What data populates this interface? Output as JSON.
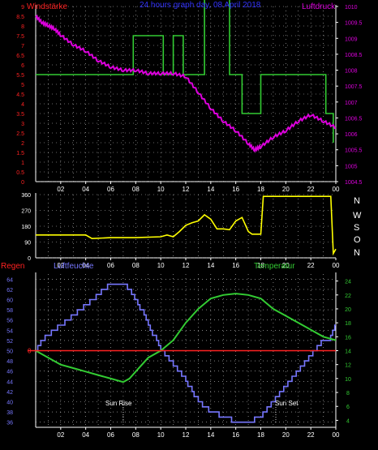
{
  "header": {
    "left_label": "Windstärke",
    "title": "24 hours graph day, 08 April 2018",
    "right_label": "Luftdruck"
  },
  "mid": {
    "axis_right_labels": [
      "N",
      "W",
      "S",
      "O",
      "N"
    ]
  },
  "bottom": {
    "left_label_1": "Regen",
    "left_label_2": "Luftfeuchte",
    "right_label": "Temperatur",
    "sunrise_label": "Sun Rise",
    "sunset_label": "Sun Set"
  },
  "colors": {
    "wind": "#33cc33",
    "pressure": "#dd00dd",
    "direction": "#ffff00",
    "humidity": "#7777ff",
    "temperature": "#33cc33",
    "rain": "#ff2222",
    "axis": "#ffffff",
    "grid": "#cccccc",
    "title": "#3333ff"
  },
  "chart_data": [
    {
      "type": "line",
      "title": "24 hours graph day, 08 April 2018",
      "x_ticks": [
        "02",
        "04",
        "06",
        "08",
        "10",
        "12",
        "14",
        "16",
        "18",
        "20",
        "22",
        "00"
      ],
      "y_left_label": "Windstärke",
      "y_left_ticks": [
        "0",
        "0.5",
        "1",
        "1.5",
        "2",
        "2.5",
        "3",
        "3.5",
        "4",
        "4.5",
        "5",
        "5.5",
        "6",
        "6.5",
        "7",
        "7.5",
        "8",
        "8.5",
        "9"
      ],
      "y_left_lim": [
        0,
        9
      ],
      "y_right_label": "Luftdruck",
      "y_right_ticks": [
        "1004.5",
        "1005",
        "1005.5",
        "1006",
        "1006.5",
        "1007",
        "1007.5",
        "1008",
        "1008.5",
        "1009",
        "1009.5",
        "1010"
      ],
      "y_right_lim": [
        1004.5,
        1010
      ],
      "series": [
        {
          "name": "Windstärke",
          "axis": "left",
          "step": true,
          "x": [
            0,
            7.8,
            7.8,
            10.2,
            10.2,
            11,
            11,
            11.8,
            11.8,
            13.5,
            13.5,
            15.5,
            15.5,
            16.5,
            16.5,
            18,
            18,
            20,
            20,
            23.2,
            23.2,
            23.8,
            23.8
          ],
          "y": [
            5.5,
            5.5,
            7.5,
            7.5,
            5.5,
            5.5,
            7.5,
            7.5,
            5.5,
            5.5,
            9.5,
            9.5,
            5.5,
            5.5,
            3.5,
            3.5,
            5.5,
            5.5,
            5.5,
            5.5,
            3.5,
            3.5,
            2
          ]
        },
        {
          "name": "Luftdruck",
          "axis": "right",
          "x": [
            0,
            0.5,
            1,
            1.5,
            2,
            3,
            4,
            5,
            6,
            7,
            8,
            9,
            10,
            11,
            12,
            13,
            14,
            15,
            16,
            17,
            17.5,
            18,
            19,
            20,
            21,
            22,
            23,
            24
          ],
          "y": [
            1009.7,
            1009.5,
            1009.4,
            1009.3,
            1009.1,
            1008.8,
            1008.6,
            1008.3,
            1008.1,
            1008.0,
            1008.0,
            1007.9,
            1007.9,
            1007.9,
            1007.8,
            1007.3,
            1006.8,
            1006.4,
            1006.1,
            1005.7,
            1005.5,
            1005.6,
            1005.9,
            1006.1,
            1006.4,
            1006.6,
            1006.4,
            1006.2
          ]
        }
      ]
    },
    {
      "type": "line",
      "x_ticks": [
        "02",
        "04",
        "06",
        "08",
        "10",
        "12",
        "14",
        "16",
        "18",
        "20",
        "22",
        "00"
      ],
      "y_left_ticks": [
        "0",
        "90",
        "180",
        "270",
        "360"
      ],
      "y_lim": [
        0,
        360
      ],
      "series": [
        {
          "name": "Windrichtung",
          "x": [
            0,
            2,
            4,
            4.5,
            6,
            8,
            10,
            10.5,
            11,
            11.5,
            12,
            12.5,
            13,
            13.5,
            14,
            14.5,
            15,
            15.5,
            16,
            16.5,
            17,
            17.3,
            17.8,
            18,
            18.2,
            20,
            22,
            23.6,
            23.8,
            24
          ],
          "y": [
            130,
            130,
            130,
            110,
            115,
            115,
            120,
            130,
            120,
            150,
            185,
            200,
            210,
            245,
            220,
            165,
            165,
            160,
            210,
            230,
            150,
            135,
            135,
            135,
            350,
            350,
            350,
            350,
            25,
            50
          ]
        }
      ]
    },
    {
      "type": "line",
      "x_ticks": [
        "02",
        "04",
        "06",
        "08",
        "10",
        "12",
        "14",
        "16",
        "18",
        "20",
        "22",
        "00"
      ],
      "y_left_ticks": [
        "36",
        "38",
        "40",
        "42",
        "44",
        "46",
        "48",
        "50",
        "52",
        "54",
        "56",
        "58",
        "60",
        "62",
        "64"
      ],
      "y_left_lim": [
        35,
        65
      ],
      "y_right_ticks": [
        "4",
        "6",
        "8",
        "10",
        "12",
        "14",
        "16",
        "18",
        "20",
        "22",
        "24"
      ],
      "y_right_lim": [
        3,
        25
      ],
      "annotations": [
        "Sun Rise",
        "Sun Set"
      ],
      "series": [
        {
          "name": "Luftfeuchte",
          "axis": "left",
          "x": [
            0,
            0.5,
            1,
            1.5,
            2,
            3,
            4,
            5,
            5.5,
            6,
            7,
            7.5,
            8,
            9,
            10,
            11,
            12,
            13,
            14,
            15,
            16,
            17,
            18,
            19,
            20,
            21,
            22,
            23,
            23.5,
            24
          ],
          "y": [
            50,
            52,
            53,
            54,
            55,
            57,
            59,
            61,
            62,
            63,
            63,
            62,
            60,
            55,
            50,
            47,
            44,
            40,
            38,
            37,
            36,
            36,
            37,
            40,
            43,
            46,
            49,
            52,
            52,
            55
          ]
        },
        {
          "name": "Temperatur",
          "axis": "right",
          "x": [
            0,
            1,
            2,
            3,
            4,
            5,
            6,
            7,
            7.5,
            8,
            9,
            10,
            11,
            12,
            13,
            14,
            15,
            16,
            17,
            18,
            19,
            20,
            21,
            22,
            23,
            24
          ],
          "y": [
            14,
            13,
            12,
            11.5,
            11,
            10.5,
            10,
            9.5,
            10,
            11,
            13,
            14,
            15.5,
            18,
            20,
            21.5,
            22,
            22.2,
            22,
            21.5,
            20,
            19,
            18,
            17,
            16,
            15.5
          ]
        },
        {
          "name": "Regen",
          "axis": "left",
          "x": [
            0,
            24
          ],
          "y": [
            50,
            50
          ]
        }
      ]
    }
  ]
}
